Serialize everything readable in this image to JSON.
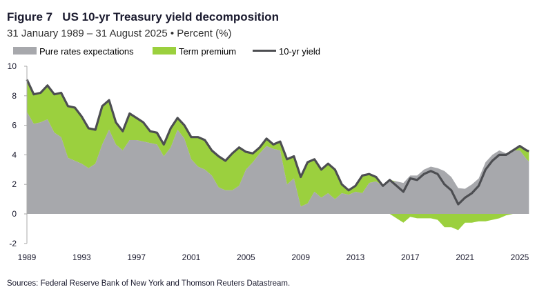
{
  "chart_data": {
    "type": "area",
    "title": "Figure 7   US 10-yr Treasury yield decomposition",
    "subtitle": "31 January 1989 – 31 August 2025 • Percent (%)",
    "source": "Sources: Federal Reserve Bank of New York and Thomson Reuters Datastream.",
    "xlabel": "",
    "ylabel": "",
    "xlim": [
      1989,
      2025.67
    ],
    "ylim": [
      -2,
      10
    ],
    "x_ticks": [
      "1989",
      "1993",
      "1997",
      "2001",
      "2005",
      "2009",
      "2013",
      "2017",
      "2021",
      "2025"
    ],
    "y_ticks": [
      "10",
      "8",
      "6",
      "4",
      "2",
      "0",
      "-2"
    ],
    "grid": false,
    "legend_position": "top-left",
    "colors": {
      "expectations": "#a7a8ac",
      "term_premium": "#9bd03e",
      "yield": "#4d4e52"
    },
    "legend": [
      "Pure rates expectations",
      "Term premium",
      "10-yr yield"
    ],
    "x": [
      1989.0,
      1989.5,
      1990.0,
      1990.5,
      1991.0,
      1991.5,
      1992.0,
      1992.5,
      1993.0,
      1993.5,
      1994.0,
      1994.5,
      1995.0,
      1995.5,
      1996.0,
      1996.5,
      1997.0,
      1997.5,
      1998.0,
      1998.5,
      1999.0,
      1999.5,
      2000.0,
      2000.5,
      2001.0,
      2001.5,
      2002.0,
      2002.5,
      2003.0,
      2003.5,
      2004.0,
      2004.5,
      2005.0,
      2005.5,
      2006.0,
      2006.5,
      2007.0,
      2007.5,
      2008.0,
      2008.5,
      2009.0,
      2009.5,
      2010.0,
      2010.5,
      2011.0,
      2011.5,
      2012.0,
      2012.5,
      2013.0,
      2013.5,
      2014.0,
      2014.5,
      2015.0,
      2015.5,
      2016.0,
      2016.5,
      2017.0,
      2017.5,
      2018.0,
      2018.5,
      2019.0,
      2019.5,
      2020.0,
      2020.5,
      2021.0,
      2021.5,
      2022.0,
      2022.5,
      2023.0,
      2023.5,
      2024.0,
      2024.5,
      2025.0,
      2025.5,
      2025.67
    ],
    "series": [
      {
        "name": "10-yr yield",
        "values": [
          9.1,
          8.1,
          8.2,
          8.7,
          8.1,
          8.2,
          7.3,
          7.2,
          6.6,
          5.8,
          5.7,
          7.3,
          7.7,
          6.2,
          5.6,
          6.8,
          6.5,
          6.2,
          5.6,
          5.5,
          4.7,
          5.8,
          6.5,
          6.0,
          5.2,
          5.2,
          5.0,
          4.3,
          3.9,
          3.6,
          4.1,
          4.5,
          4.2,
          4.1,
          4.5,
          5.1,
          4.7,
          4.9,
          3.7,
          3.9,
          2.5,
          3.5,
          3.7,
          3.0,
          3.4,
          3.0,
          2.0,
          1.6,
          1.9,
          2.6,
          2.7,
          2.5,
          1.9,
          2.3,
          1.9,
          1.5,
          2.4,
          2.3,
          2.7,
          2.9,
          2.7,
          2.0,
          1.6,
          0.65,
          1.1,
          1.4,
          1.9,
          3.0,
          3.6,
          4.0,
          4.0,
          4.3,
          4.6,
          4.3,
          4.25
        ]
      },
      {
        "name": "Term premium",
        "values": [
          2.2,
          2.0,
          2.0,
          2.3,
          2.6,
          3.0,
          3.5,
          3.6,
          3.2,
          2.7,
          2.3,
          2.6,
          2.0,
          1.5,
          1.3,
          1.8,
          1.5,
          1.3,
          0.8,
          0.8,
          0.8,
          1.3,
          0.8,
          0.9,
          1.5,
          2.0,
          2.0,
          1.7,
          2.1,
          2.0,
          2.5,
          2.6,
          1.2,
          0.6,
          0.4,
          0.5,
          0.3,
          0.6,
          1.7,
          1.5,
          2.0,
          2.8,
          2.2,
          1.9,
          2.0,
          2.0,
          0.6,
          0.3,
          0.4,
          1.2,
          0.6,
          0.3,
          0.0,
          0.1,
          -0.3,
          -0.6,
          -0.2,
          -0.3,
          -0.3,
          -0.3,
          -0.4,
          -0.9,
          -0.9,
          -1.1,
          -0.6,
          -0.6,
          -0.5,
          -0.5,
          -0.4,
          -0.3,
          -0.1,
          0.0,
          0.3,
          0.6,
          0.7
        ]
      }
    ]
  }
}
